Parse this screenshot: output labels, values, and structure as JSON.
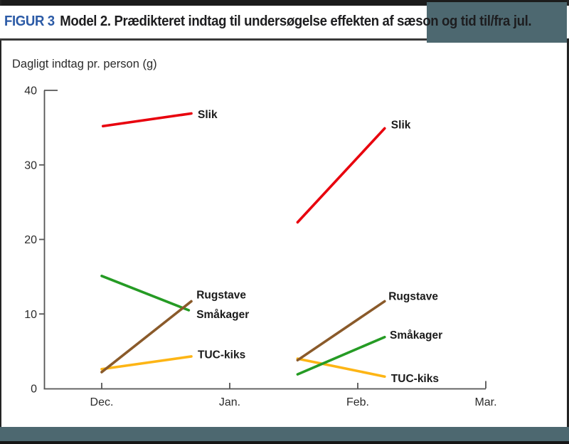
{
  "header": {
    "figure_label": "FIGUR 3",
    "title": "Model 2. Prædikteret indtag til undersøgelse effekten af sæson og tid til/fra jul."
  },
  "theme": {
    "figure_label_color": "#2b5aa6",
    "title_color": "#1d1d1f",
    "top_bar_color": "#1c1c1c",
    "frame_band_color": "#4d6870",
    "bottom_line_color": "#161616",
    "axis_color": "#555555",
    "text_color": "#2b2b2b"
  },
  "chart_data": {
    "type": "line",
    "title": "Dagligt indtag pr. person (g)",
    "ylabel": "Dagligt indtag pr. person (g)",
    "xlabel": "",
    "ylim": [
      0,
      40
    ],
    "yticks": [
      0,
      10,
      20,
      30,
      40
    ],
    "x_categories": [
      "Dec.",
      "Jan.",
      "Feb.",
      "Mar."
    ],
    "x_unit": "months, Dec. = 0",
    "grid": false,
    "legend": "inline labels at right end of each line segment",
    "series": [
      {
        "name": "TUC-kiks",
        "color": "#fdb515",
        "segments": [
          {
            "x1": 0.0,
            "y1": 2.6,
            "x2": 0.7,
            "y2": 4.3
          },
          {
            "x1": 1.53,
            "y1": 4.0,
            "x2": 2.21,
            "y2": 1.6
          }
        ],
        "labels": [
          {
            "x": 0.75,
            "y": 4.6
          },
          {
            "x": 2.26,
            "y": 1.4
          }
        ]
      },
      {
        "name": "Småkager",
        "color": "#259b24",
        "segments": [
          {
            "x1": 0.0,
            "y1": 15.1,
            "x2": 0.68,
            "y2": 10.5
          },
          {
            "x1": 1.53,
            "y1": 1.9,
            "x2": 2.21,
            "y2": 6.9
          }
        ],
        "labels": [
          {
            "x": 0.74,
            "y": 10.0
          },
          {
            "x": 2.25,
            "y": 7.2
          }
        ]
      },
      {
        "name": "Rugstave",
        "color": "#8a5a2a",
        "segments": [
          {
            "x1": 0.0,
            "y1": 2.2,
            "x2": 0.7,
            "y2": 11.7
          },
          {
            "x1": 1.53,
            "y1": 3.8,
            "x2": 2.21,
            "y2": 11.7
          }
        ],
        "labels": [
          {
            "x": 0.74,
            "y": 12.6
          },
          {
            "x": 2.24,
            "y": 12.4
          }
        ]
      },
      {
        "name": "Slik",
        "color": "#e8000d",
        "segments": [
          {
            "x1": 0.01,
            "y1": 35.2,
            "x2": 0.7,
            "y2": 36.9
          },
          {
            "x1": 1.53,
            "y1": 22.3,
            "x2": 2.21,
            "y2": 34.9
          }
        ],
        "labels": [
          {
            "x": 0.75,
            "y": 36.8
          },
          {
            "x": 2.26,
            "y": 35.4
          }
        ]
      }
    ]
  }
}
